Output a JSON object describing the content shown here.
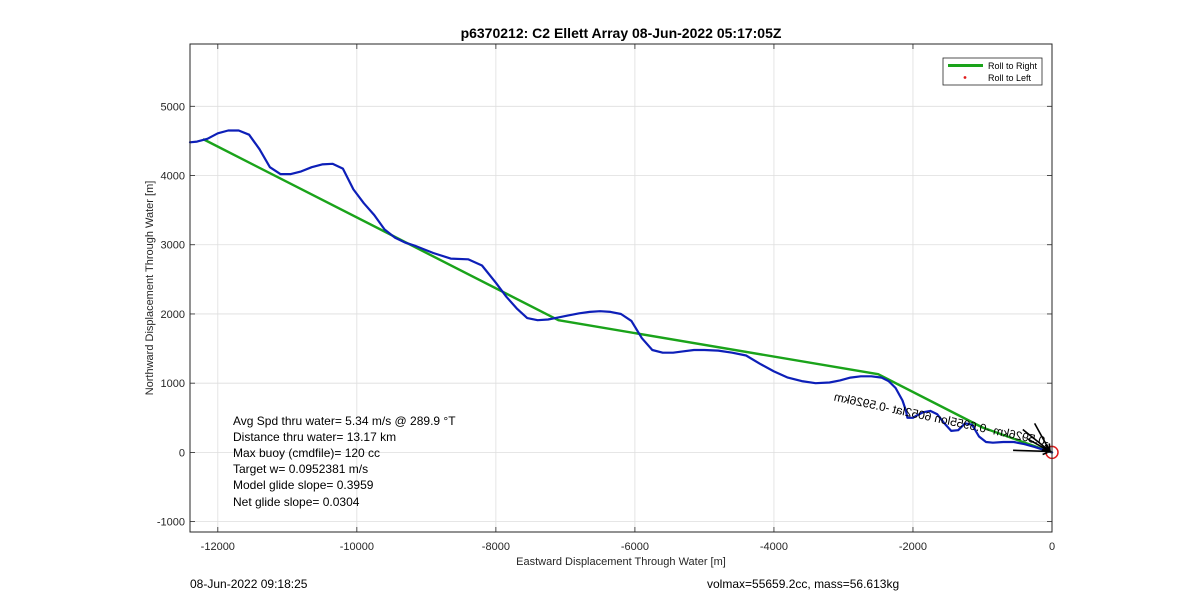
{
  "chart_data": {
    "type": "line",
    "title": "p6370212: C2 Ellett Array 08-Jun-2022 05:17:05Z",
    "xlabel": "Eastward Displacement Through Water [m]",
    "ylabel": "Northward Displacement Through Water [m]",
    "xlim": [
      -12400,
      0
    ],
    "ylim": [
      -1150,
      5900
    ],
    "xticks": [
      -12000,
      -10000,
      -8000,
      -6000,
      -4000,
      -2000,
      0
    ],
    "yticks": [
      -1000,
      0,
      1000,
      2000,
      3000,
      4000,
      5000
    ],
    "grid": true,
    "legend": {
      "placement": "top-right",
      "entries": [
        {
          "label": "Roll to Right",
          "color": "#1aa31a",
          "style": "line"
        },
        {
          "label": "Roll to Left",
          "color": "#e01b1b",
          "style": "dot"
        }
      ]
    },
    "series": [
      {
        "color": "#0d1fb8",
        "style": "line",
        "x": [
          -12400,
          -12300,
          -12150,
          -12000,
          -11850,
          -11700,
          -11550,
          -11400,
          -11250,
          -11100,
          -10950,
          -10800,
          -10650,
          -10500,
          -10350,
          -10200,
          -10050,
          -9900,
          -9750,
          -9600,
          -9450,
          -9300,
          -9150,
          -8900,
          -8650,
          -8400,
          -8200,
          -8000,
          -7850,
          -7700,
          -7550,
          -7400,
          -7250,
          -7100,
          -6950,
          -6800,
          -6650,
          -6500,
          -6350,
          -6200,
          -6050,
          -5900,
          -5750,
          -5600,
          -5450,
          -5300,
          -5150,
          -5000,
          -4800,
          -4600,
          -4400,
          -4200,
          -4000,
          -3800,
          -3600,
          -3400,
          -3200,
          -3050,
          -2900,
          -2750,
          -2600,
          -2450,
          -2350,
          -2250,
          -2150,
          -2100,
          -2080,
          -2060,
          -2000,
          -1950,
          -1850,
          -1750,
          -1650,
          -1550,
          -1450,
          -1350,
          -1250,
          -1150,
          -1050,
          -950,
          -850,
          -700,
          -550,
          -400,
          -250,
          -100,
          0
        ],
        "y": [
          4480,
          4490,
          4530,
          4610,
          4650,
          4650,
          4590,
          4380,
          4120,
          4020,
          4020,
          4060,
          4120,
          4160,
          4170,
          4100,
          3800,
          3600,
          3430,
          3220,
          3100,
          3030,
          2980,
          2880,
          2800,
          2790,
          2700,
          2450,
          2250,
          2080,
          1940,
          1910,
          1920,
          1950,
          1980,
          2010,
          2030,
          2040,
          2030,
          2000,
          1900,
          1650,
          1480,
          1440,
          1440,
          1460,
          1480,
          1480,
          1470,
          1440,
          1400,
          1280,
          1170,
          1080,
          1030,
          1000,
          1010,
          1040,
          1080,
          1100,
          1100,
          1080,
          1030,
          930,
          750,
          600,
          500,
          500,
          500,
          530,
          580,
          600,
          550,
          420,
          310,
          320,
          420,
          400,
          230,
          150,
          140,
          150,
          150,
          120,
          80,
          30,
          0
        ]
      },
      {
        "color": "#1aa31a",
        "style": "line",
        "x": [
          -12200,
          -7100,
          -2500,
          -1000,
          0
        ],
        "y": [
          4520,
          1910,
          1130,
          360,
          0
        ]
      }
    ],
    "annotation": "-0.5926km -0.6955lon 6052lat -0.5926km",
    "stats": [
      "Avg Spd thru water=  5.34 m/s @ 289.9 °T",
      "Distance thru water= 13.17 km",
      "Max buoy (cmdfile)= 120 cc",
      "Target w= 0.0952381 m/s",
      "Model glide slope= 0.3959",
      "Net glide slope= 0.0304"
    ]
  },
  "footer": {
    "left": "08-Jun-2022 09:18:25",
    "right": "volmax=55659.2cc, mass=56.613kg"
  },
  "colors": {
    "track": "#0d1fb8",
    "roll_right": "#1aa31a",
    "roll_left": "#e01b1b",
    "grid": "#dedede",
    "axes": "#262626",
    "end_marker": "#e01b1b"
  }
}
